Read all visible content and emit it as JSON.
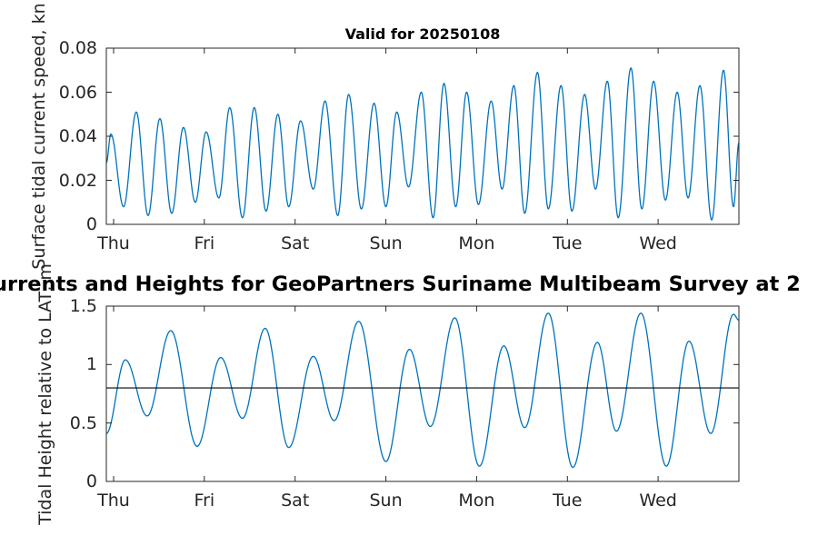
{
  "figure": {
    "background": "#ffffff",
    "main_title_visible": "urrents and Heights for GeoPartners Suriname Multibeam Survey at 2"
  },
  "chart_data": [
    {
      "type": "line",
      "title": "Valid for 20250108",
      "ylabel": "Surface tidal current speed, kn",
      "xlabel": "",
      "ylim": [
        0,
        0.08
      ],
      "yticks": [
        0,
        0.02,
        0.04,
        0.06,
        0.08
      ],
      "ytick_labels": [
        "0",
        "0.02",
        "0.04",
        "0.06",
        "0.08"
      ],
      "xlim": [
        -0.08,
        6.89
      ],
      "x_unit": "days",
      "xticks": [
        0,
        1,
        2,
        3,
        4,
        5,
        6
      ],
      "xtick_labels": [
        "Thu",
        "Fri",
        "Sat",
        "Sun",
        "Mon",
        "Tue",
        "Wed"
      ],
      "grid": false,
      "box": true,
      "line_color": "#0072BD",
      "axis_color": "#262626",
      "interpolation": "cosine-between-extrema",
      "points_extrema": [
        [
          -0.08,
          0.028
        ],
        [
          -0.03,
          0.041
        ],
        [
          0.11,
          0.008
        ],
        [
          0.25,
          0.051
        ],
        [
          0.38,
          0.004
        ],
        [
          0.51,
          0.048
        ],
        [
          0.64,
          0.005
        ],
        [
          0.77,
          0.044
        ],
        [
          0.9,
          0.01
        ],
        [
          1.02,
          0.042
        ],
        [
          1.16,
          0.012
        ],
        [
          1.28,
          0.053
        ],
        [
          1.42,
          0.003
        ],
        [
          1.55,
          0.053
        ],
        [
          1.68,
          0.006
        ],
        [
          1.81,
          0.05
        ],
        [
          1.93,
          0.008
        ],
        [
          2.06,
          0.047
        ],
        [
          2.2,
          0.016
        ],
        [
          2.33,
          0.056
        ],
        [
          2.47,
          0.004
        ],
        [
          2.59,
          0.059
        ],
        [
          2.73,
          0.007
        ],
        [
          2.87,
          0.055
        ],
        [
          3.0,
          0.008
        ],
        [
          3.12,
          0.051
        ],
        [
          3.25,
          0.017
        ],
        [
          3.39,
          0.06
        ],
        [
          3.52,
          0.003
        ],
        [
          3.64,
          0.064
        ],
        [
          3.77,
          0.008
        ],
        [
          3.89,
          0.06
        ],
        [
          4.02,
          0.009
        ],
        [
          4.16,
          0.056
        ],
        [
          4.28,
          0.016
        ],
        [
          4.41,
          0.063
        ],
        [
          4.53,
          0.005
        ],
        [
          4.67,
          0.069
        ],
        [
          4.79,
          0.007
        ],
        [
          4.93,
          0.063
        ],
        [
          5.05,
          0.006
        ],
        [
          5.19,
          0.059
        ],
        [
          5.31,
          0.016
        ],
        [
          5.44,
          0.065
        ],
        [
          5.56,
          0.003
        ],
        [
          5.7,
          0.071
        ],
        [
          5.82,
          0.007
        ],
        [
          5.95,
          0.065
        ],
        [
          6.08,
          0.011
        ],
        [
          6.21,
          0.06
        ],
        [
          6.33,
          0.012
        ],
        [
          6.46,
          0.063
        ],
        [
          6.59,
          0.002
        ],
        [
          6.72,
          0.07
        ],
        [
          6.83,
          0.008
        ],
        [
          6.89,
          0.037
        ]
      ]
    },
    {
      "type": "line",
      "title": "",
      "ylabel": "Tidal Height relative to LAT, m",
      "xlabel": "",
      "ylim": [
        0,
        1.5
      ],
      "yticks": [
        0,
        0.5,
        1,
        1.5
      ],
      "ytick_labels": [
        "0",
        "0.5",
        "1",
        "1.5"
      ],
      "xlim": [
        -0.08,
        6.89
      ],
      "x_unit": "days",
      "xticks": [
        0,
        1,
        2,
        3,
        4,
        5,
        6
      ],
      "xtick_labels": [
        "Thu",
        "Fri",
        "Sat",
        "Sun",
        "Mon",
        "Tue",
        "Wed"
      ],
      "grid": false,
      "box": true,
      "line_color": "#0072BD",
      "axis_color": "#262626",
      "reference_line_y": 0.8,
      "reference_line_color": "#000000",
      "interpolation": "cosine-between-extrema",
      "points_extrema": [
        [
          -0.08,
          0.41
        ],
        [
          0.13,
          1.04
        ],
        [
          0.37,
          0.56
        ],
        [
          0.63,
          1.29
        ],
        [
          0.92,
          0.3
        ],
        [
          1.18,
          1.06
        ],
        [
          1.42,
          0.54
        ],
        [
          1.67,
          1.31
        ],
        [
          1.93,
          0.29
        ],
        [
          2.2,
          1.07
        ],
        [
          2.43,
          0.52
        ],
        [
          2.7,
          1.37
        ],
        [
          3.0,
          0.17
        ],
        [
          3.26,
          1.13
        ],
        [
          3.49,
          0.47
        ],
        [
          3.76,
          1.4
        ],
        [
          4.03,
          0.13
        ],
        [
          4.3,
          1.16
        ],
        [
          4.53,
          0.46
        ],
        [
          4.79,
          1.44
        ],
        [
          5.06,
          0.12
        ],
        [
          5.33,
          1.19
        ],
        [
          5.54,
          0.43
        ],
        [
          5.81,
          1.44
        ],
        [
          6.09,
          0.13
        ],
        [
          6.34,
          1.2
        ],
        [
          6.58,
          0.41
        ],
        [
          6.83,
          1.43
        ],
        [
          6.89,
          1.38
        ]
      ]
    }
  ]
}
